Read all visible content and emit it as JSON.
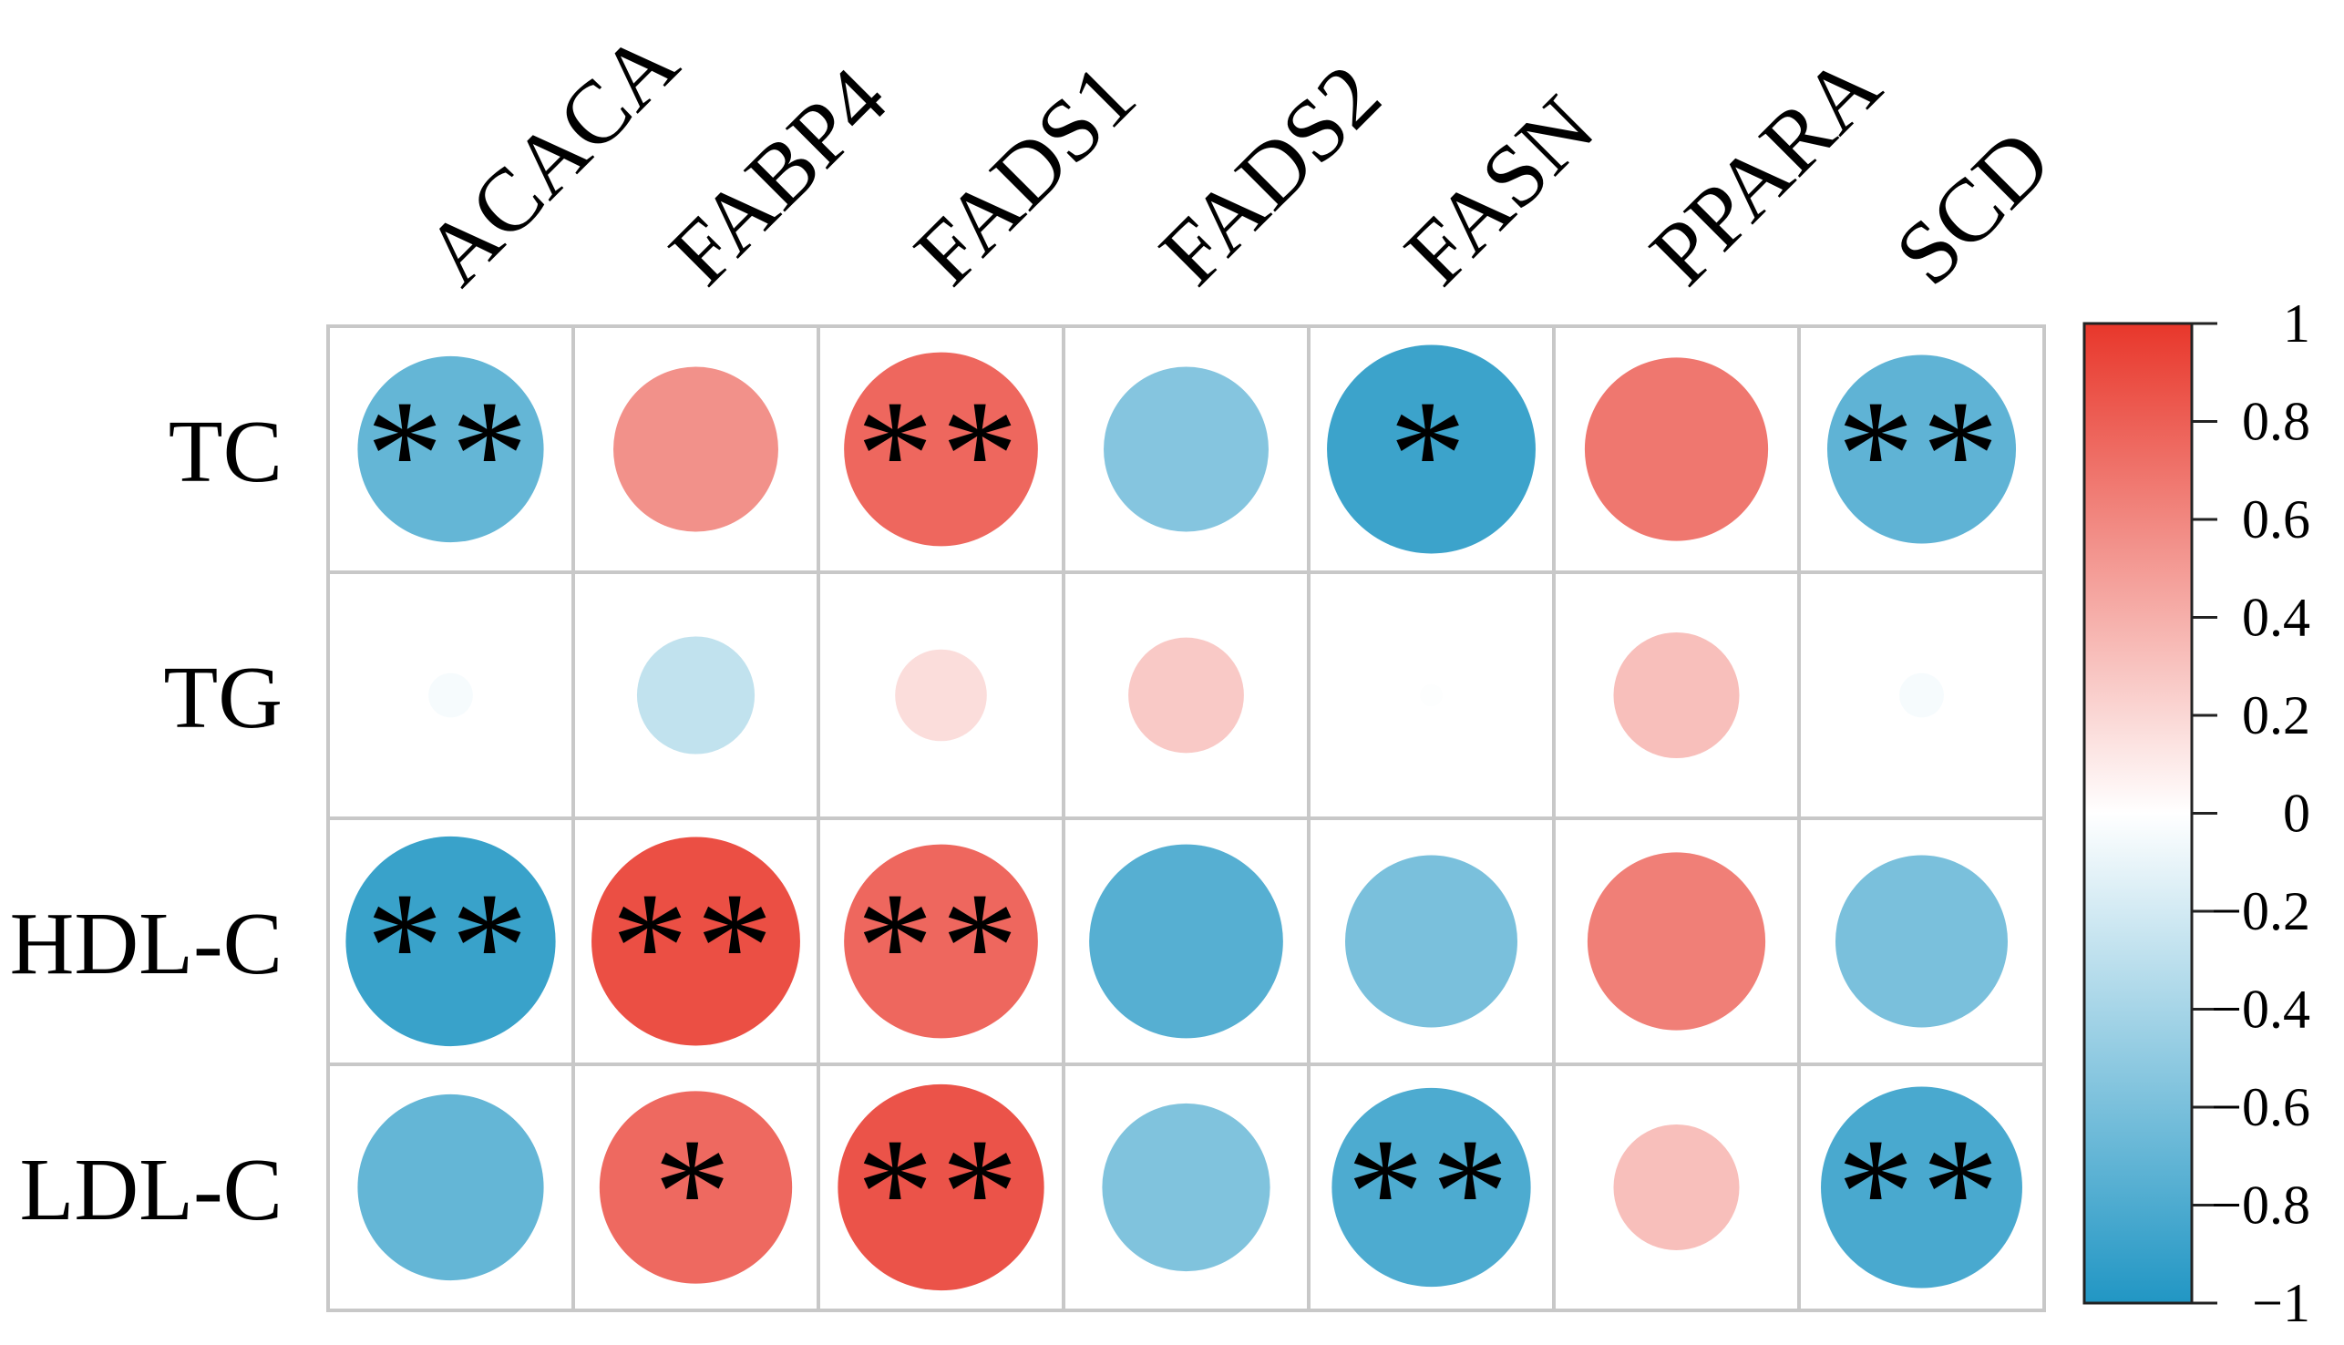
{
  "chart_data": {
    "type": "heatmap",
    "style": "correlation circle plot",
    "title": "",
    "xlabel": "",
    "ylabel": "",
    "columns": [
      "ACACA",
      "FABP4",
      "FADS1",
      "FADS2",
      "FASN",
      "PPARA",
      "SCD"
    ],
    "rows": [
      "TC",
      "TG",
      "HDL-C",
      "LDL-C"
    ],
    "values": [
      [
        -0.7,
        0.55,
        0.76,
        -0.55,
        -0.88,
        0.68,
        -0.72
      ],
      [
        -0.04,
        -0.28,
        0.17,
        0.27,
        -0.01,
        0.32,
        -0.04
      ],
      [
        -0.89,
        0.88,
        0.76,
        -0.76,
        -0.6,
        0.64,
        -0.6
      ],
      [
        -0.7,
        0.75,
        0.86,
        -0.57,
        -0.8,
        0.32,
        -0.82
      ]
    ],
    "significance": [
      [
        "**",
        "",
        "**",
        "",
        "*",
        "",
        "**"
      ],
      [
        "",
        "",
        "",
        "",
        "",
        "",
        ""
      ],
      [
        "**",
        "**",
        "**",
        "",
        "",
        "",
        ""
      ],
      [
        "",
        "*",
        "**",
        "",
        "**",
        "",
        "**"
      ]
    ],
    "colorbar": {
      "range": [
        -1,
        1
      ],
      "ticks": [
        "1",
        "0.8",
        "0.6",
        "0.4",
        "0.2",
        "0",
        "−0.2",
        "−0.4",
        "−0.6",
        "−0.8",
        "−1"
      ],
      "colors": {
        "negative": "#2196C4",
        "zero": "#FFFFFF",
        "positive": "#E8372B"
      }
    },
    "grid": true,
    "legend_position": "right"
  }
}
